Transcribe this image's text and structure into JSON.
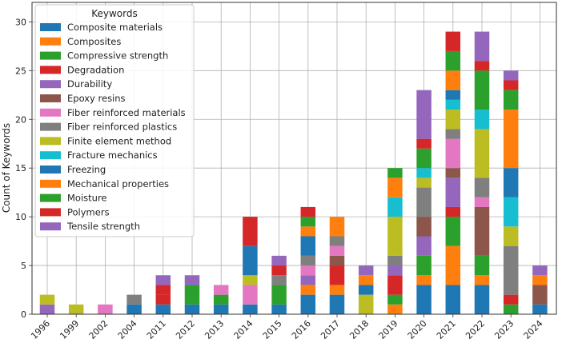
{
  "chart_data": {
    "type": "bar",
    "stacked": true,
    "ylabel": "Count of Keywords",
    "xlabel": "",
    "ylim": [
      0,
      32
    ],
    "yticks": [
      0,
      5,
      10,
      15,
      20,
      25,
      30
    ],
    "grid": true,
    "legend": {
      "title": "Keywords",
      "placement": "top-left"
    },
    "categories": [
      "1996",
      "1999",
      "2002",
      "2004",
      "2011",
      "2012",
      "2013",
      "2014",
      "2015",
      "2016",
      "2017",
      "2018",
      "2019",
      "2020",
      "2021",
      "2022",
      "2023",
      "2024"
    ],
    "series": [
      {
        "name": "Composite materials",
        "color": "#1f77b4",
        "values": [
          0,
          0,
          0,
          1,
          1,
          1,
          1,
          1,
          1,
          2,
          2,
          0,
          0,
          3,
          3,
          3,
          0,
          1
        ]
      },
      {
        "name": "Composites",
        "color": "#ff7f0e",
        "values": [
          0,
          0,
          0,
          0,
          0,
          0,
          0,
          0,
          0,
          1,
          1,
          0,
          1,
          1,
          4,
          1,
          0,
          0
        ]
      },
      {
        "name": "Compressive strength",
        "color": "#2ca02c",
        "values": [
          0,
          0,
          0,
          0,
          0,
          2,
          1,
          0,
          2,
          0,
          0,
          0,
          1,
          2,
          3,
          2,
          1,
          0
        ]
      },
      {
        "name": "Degradation",
        "color": "#d62728",
        "values": [
          0,
          0,
          0,
          0,
          1,
          0,
          0,
          0,
          0,
          0,
          2,
          0,
          2,
          0,
          1,
          0,
          1,
          0
        ]
      },
      {
        "name": "Durability",
        "color": "#9467bd",
        "values": [
          1,
          0,
          0,
          0,
          0,
          0,
          0,
          0,
          0,
          1,
          0,
          0,
          1,
          2,
          3,
          0,
          0,
          0
        ]
      },
      {
        "name": "Epoxy resins",
        "color": "#8c564b",
        "values": [
          0,
          0,
          0,
          0,
          0,
          0,
          0,
          0,
          0,
          0,
          1,
          0,
          0,
          2,
          1,
          5,
          0,
          2
        ]
      },
      {
        "name": "Fiber reinforced materials",
        "color": "#e377c2",
        "values": [
          0,
          0,
          1,
          0,
          0,
          0,
          1,
          2,
          0,
          1,
          1,
          0,
          0,
          0,
          3,
          1,
          0,
          0
        ]
      },
      {
        "name": "Fiber reinforced plastics",
        "color": "#7f7f7f",
        "values": [
          0,
          0,
          0,
          1,
          0,
          0,
          0,
          0,
          1,
          1,
          1,
          0,
          1,
          3,
          1,
          2,
          5,
          0
        ]
      },
      {
        "name": "Finite element method",
        "color": "#bcbd22",
        "values": [
          1,
          1,
          0,
          0,
          0,
          0,
          0,
          1,
          0,
          0,
          0,
          2,
          4,
          1,
          2,
          5,
          2,
          0
        ]
      },
      {
        "name": "Fracture mechanics",
        "color": "#17becf",
        "values": [
          0,
          0,
          0,
          0,
          0,
          0,
          0,
          0,
          0,
          0,
          0,
          0,
          2,
          1,
          1,
          2,
          3,
          0
        ]
      },
      {
        "name": "Freezing",
        "color": "#1f77b4",
        "values": [
          0,
          0,
          0,
          0,
          0,
          0,
          0,
          3,
          0,
          2,
          0,
          1,
          0,
          0,
          1,
          0,
          3,
          0
        ]
      },
      {
        "name": "Mechanical properties",
        "color": "#ff7f0e",
        "values": [
          0,
          0,
          0,
          0,
          0,
          0,
          0,
          0,
          0,
          1,
          2,
          1,
          2,
          0,
          2,
          0,
          6,
          1
        ]
      },
      {
        "name": "Moisture",
        "color": "#2ca02c",
        "values": [
          0,
          0,
          0,
          0,
          0,
          0,
          0,
          0,
          0,
          1,
          0,
          0,
          1,
          2,
          2,
          4,
          2,
          0
        ]
      },
      {
        "name": "Polymers",
        "color": "#d62728",
        "values": [
          0,
          0,
          0,
          0,
          1,
          0,
          0,
          3,
          1,
          1,
          0,
          0,
          0,
          1,
          2,
          1,
          1,
          0
        ]
      },
      {
        "name": "Tensile strength",
        "color": "#9467bd",
        "values": [
          0,
          0,
          0,
          0,
          1,
          1,
          0,
          0,
          1,
          0,
          0,
          1,
          0,
          5,
          0,
          3,
          1,
          1
        ]
      }
    ]
  }
}
